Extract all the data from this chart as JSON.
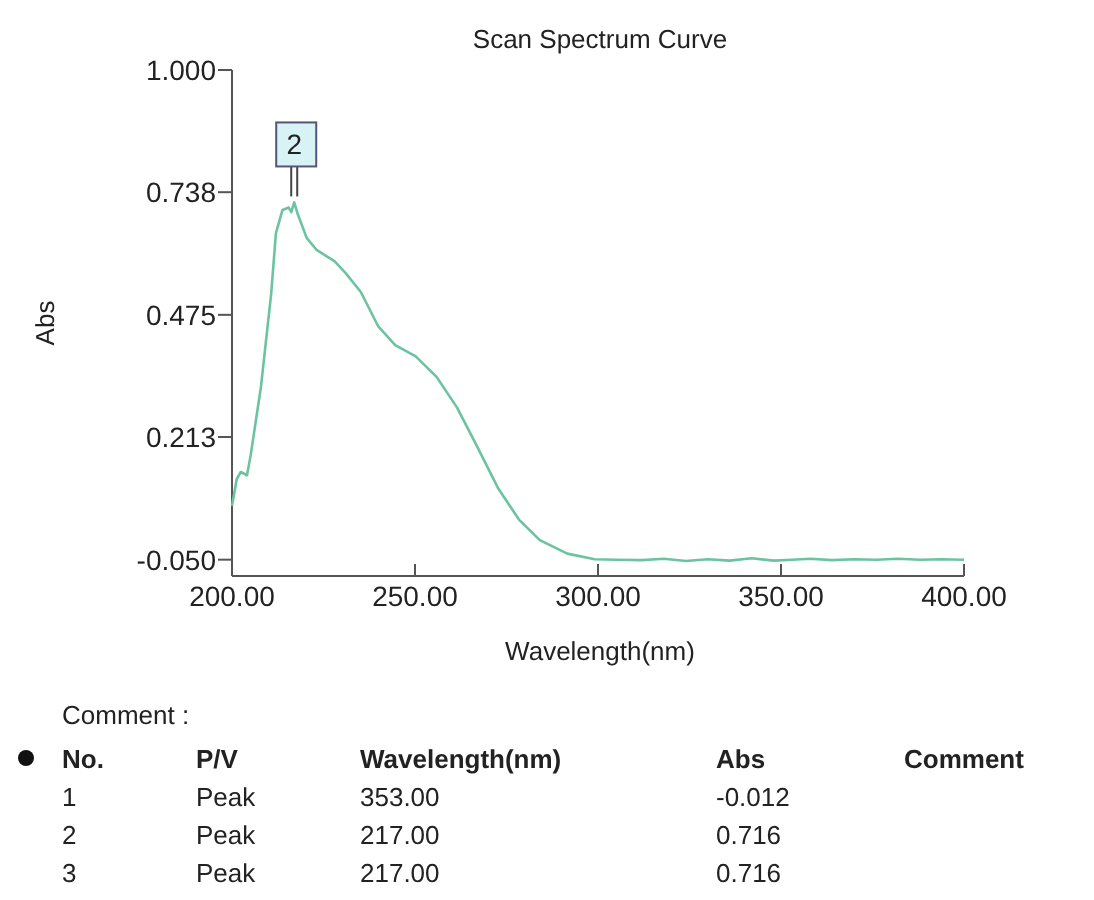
{
  "chart_data": {
    "type": "line",
    "title": "Scan Spectrum Curve",
    "xlabel": "Wavelength(nm)",
    "ylabel": "Abs",
    "xlim": [
      200,
      400
    ],
    "xticks": [
      {
        "value": 200,
        "label": "200.00"
      },
      {
        "value": 250,
        "label": "250.00"
      },
      {
        "value": 300,
        "label": "300.00"
      },
      {
        "value": 350,
        "label": "350.00"
      },
      {
        "value": 400,
        "label": "400.00"
      }
    ],
    "ylim": [
      -0.085,
      1.0
    ],
    "yticks": [
      {
        "value": -0.05,
        "label": "-0.050"
      },
      {
        "value": 0.213,
        "label": "0.213"
      },
      {
        "value": 0.475,
        "label": "0.475"
      },
      {
        "value": 0.738,
        "label": "0.738"
      },
      {
        "value": 1.0,
        "label": "1.000"
      }
    ],
    "grid": false,
    "marker": "none",
    "line_style": "solid",
    "series": [
      {
        "color": "#6cc3a0",
        "x": [
          200,
          201.3,
          202.4,
          204.1,
          205.1,
          207.9,
          210.7,
          212,
          213.8,
          215.5,
          216.2,
          217,
          218,
          220.4,
          223,
          226,
          228,
          231,
          235.2,
          239.9,
          244.6,
          250.2,
          255.9,
          261.5,
          267.2,
          272.8,
          278.4,
          284.1,
          291.6,
          299.1,
          305,
          312,
          318,
          324,
          330,
          336,
          342,
          348,
          353,
          358,
          364,
          370,
          376,
          382,
          388,
          394,
          400
        ],
        "values": [
          0.065,
          0.123,
          0.138,
          0.131,
          0.174,
          0.32,
          0.52,
          0.65,
          0.7,
          0.705,
          0.695,
          0.716,
          0.69,
          0.64,
          0.615,
          0.6,
          0.59,
          0.565,
          0.524,
          0.451,
          0.41,
          0.386,
          0.342,
          0.276,
          0.189,
          0.102,
          0.036,
          -0.008,
          -0.037,
          -0.049,
          -0.05,
          -0.051,
          -0.048,
          -0.053,
          -0.049,
          -0.052,
          -0.047,
          -0.052,
          -0.05,
          -0.048,
          -0.051,
          -0.049,
          -0.05,
          -0.048,
          -0.05,
          -0.049,
          -0.05
        ]
      }
    ],
    "annotations": [
      {
        "text": "2",
        "x": 217,
        "y": 0.716
      },
      "Comment :",
      "No.\tP/V\tWavelength(nm)\tAbs\tComment",
      "1\tPeak\t353.00\t-0.012",
      "2\tPeak\t217.00\t0.716",
      "3\tPeak\t217.00\t0.716"
    ]
  }
}
